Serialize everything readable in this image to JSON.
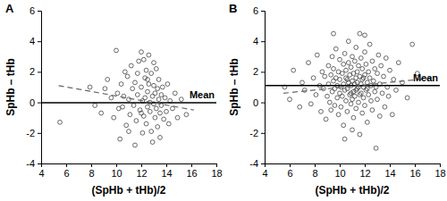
{
  "chart_data": [
    {
      "type": "scatter",
      "title": "A",
      "x_label": "(SpHb + tHb)/2",
      "y_label": "SpHb – tHb",
      "xlim": [
        4,
        18
      ],
      "xticks": [
        4,
        6,
        8,
        10,
        12,
        14,
        16,
        18
      ],
      "ylim": [
        -4,
        6
      ],
      "yticks": [
        -4,
        -2,
        0,
        2,
        4,
        6
      ],
      "annotations": [
        {
          "text": "Mean"
        }
      ],
      "series": [
        {
          "type": "scatter",
          "marker": "circle",
          "color": "#444444",
          "x": [
            5.5,
            7.9,
            8.3,
            8.8,
            9.1,
            9.3,
            9.6,
            9.8,
            10.0,
            10.1,
            10.2,
            10.4,
            10.5,
            10.6,
            10.8,
            10.9,
            11.0,
            11.1,
            11.2,
            11.3,
            11.4,
            11.5,
            11.6,
            11.7,
            11.8,
            11.9,
            12.0,
            12.0,
            12.1,
            12.1,
            12.2,
            12.2,
            12.3,
            12.3,
            12.4,
            12.4,
            12.5,
            12.5,
            12.6,
            12.6,
            12.7,
            12.7,
            12.8,
            12.8,
            12.9,
            12.9,
            13.0,
            13.0,
            13.1,
            13.1,
            13.2,
            13.2,
            13.3,
            13.3,
            13.4,
            13.4,
            13.5,
            13.5,
            13.6,
            13.6,
            13.7,
            13.8,
            13.9,
            14.0,
            14.1,
            14.2,
            14.3,
            14.5,
            14.7,
            14.9,
            15.2,
            15.6,
            11.5,
            11.0,
            10.3,
            12.0,
            12.5,
            13.0,
            11.7,
            10.7
          ],
          "values": [
            -1.3,
            1.0,
            -0.2,
            -0.7,
            0.9,
            1.5,
            0.3,
            -1.0,
            3.4,
            0.6,
            -0.4,
            1.2,
            -0.3,
            0.4,
            -1.5,
            1.7,
            0.2,
            -0.8,
            2.4,
            0.9,
            -0.2,
            1.3,
            -1.2,
            0.5,
            2.7,
            -0.5,
            3.3,
            1.0,
            -2.0,
            0.1,
            2.8,
            -0.9,
            1.6,
            0.3,
            -1.4,
            2.1,
            0.7,
            -0.3,
            3.1,
            1.2,
            -0.6,
            0.0,
            1.9,
            -1.9,
            0.4,
            -2.6,
            1.1,
            -0.1,
            -1.0,
            0.6,
            2.2,
            -0.4,
            0.9,
            -1.6,
            0.2,
            1.5,
            -0.7,
            -2.3,
            0.5,
            -0.2,
            1.0,
            -1.1,
            0.3,
            -0.6,
            1.2,
            -1.4,
            0.1,
            -0.4,
            0.6,
            -1.0,
            0.2,
            -0.8,
            -2.8,
            -1.9,
            -2.4,
            -0.7,
            1.5,
            2.6,
            1.9,
            2.0
          ]
        },
        {
          "type": "line",
          "line_style": "solid",
          "color": "#000000",
          "x": [
            4,
            18
          ],
          "values": [
            -0.03,
            -0.03
          ]
        },
        {
          "type": "line",
          "line_style": "dashed",
          "color": "#666666",
          "x": [
            5.4,
            16.2
          ],
          "values": [
            1.1,
            -0.5
          ]
        }
      ]
    },
    {
      "type": "scatter",
      "title": "B",
      "x_label": "(SpHb + tHb)/2",
      "y_label": "SpHb – tHb",
      "xlim": [
        4,
        18
      ],
      "xticks": [
        4,
        6,
        8,
        10,
        12,
        14,
        16,
        18
      ],
      "ylim": [
        -4,
        6
      ],
      "yticks": [
        -4,
        -2,
        0,
        2,
        4,
        6
      ],
      "annotations": [
        {
          "text": "Mean"
        }
      ],
      "series": [
        {
          "type": "scatter",
          "marker": "circle",
          "color": "#444444",
          "x": [
            5.6,
            6.0,
            6.3,
            6.8,
            7.0,
            7.2,
            7.5,
            7.7,
            7.9,
            8.1,
            8.2,
            8.4,
            8.5,
            8.6,
            8.7,
            8.8,
            8.9,
            9.0,
            9.1,
            9.1,
            9.2,
            9.3,
            9.3,
            9.4,
            9.4,
            9.5,
            9.5,
            9.6,
            9.6,
            9.7,
            9.7,
            9.8,
            9.8,
            9.9,
            9.9,
            10.0,
            10.0,
            10.0,
            10.1,
            10.1,
            10.2,
            10.2,
            10.3,
            10.3,
            10.3,
            10.4,
            10.4,
            10.5,
            10.5,
            10.5,
            10.6,
            10.6,
            10.7,
            10.7,
            10.7,
            10.8,
            10.8,
            10.9,
            10.9,
            10.9,
            11.0,
            11.0,
            11.0,
            11.1,
            11.1,
            11.1,
            11.2,
            11.2,
            11.2,
            11.3,
            11.3,
            11.3,
            11.4,
            11.4,
            11.4,
            11.5,
            11.5,
            11.5,
            11.6,
            11.6,
            11.6,
            11.7,
            11.7,
            11.7,
            11.8,
            11.8,
            11.8,
            11.9,
            11.9,
            12.0,
            12.0,
            12.0,
            12.1,
            12.1,
            12.2,
            12.2,
            12.3,
            12.3,
            12.4,
            12.4,
            12.5,
            12.5,
            12.6,
            12.6,
            12.7,
            12.8,
            12.8,
            12.9,
            12.9,
            13.0,
            13.0,
            13.1,
            13.2,
            13.2,
            13.3,
            13.4,
            13.5,
            13.6,
            13.7,
            13.8,
            13.9,
            14.0,
            14.2,
            14.3,
            14.5,
            14.7,
            15.0,
            15.4,
            15.8,
            16.2,
            10.4,
            11.0,
            9.5,
            12.0,
            11.3,
            10.6,
            11.9,
            12.2,
            10.9,
            11.6
          ],
          "values": [
            1.0,
            0.2,
            2.1,
            -0.3,
            1.3,
            0.8,
            2.6,
            -0.1,
            1.6,
            0.5,
            3.1,
            1.1,
            -0.6,
            2.0,
            0.9,
            1.7,
            -1.1,
            0.4,
            2.4,
            1.2,
            0.0,
            1.8,
            -0.5,
            3.0,
            0.7,
            1.4,
            2.2,
            -0.2,
            0.9,
            1.6,
            3.5,
            0.3,
            1.1,
            2.0,
            -0.8,
            0.6,
            1.5,
            2.8,
            -0.3,
            1.0,
            1.9,
            0.4,
            2.5,
            -1.5,
            1.2,
            0.8,
            3.2,
            0.1,
            1.6,
            2.1,
            -0.6,
            0.9,
            1.3,
            4.0,
            2.6,
            0.5,
            1.8,
            -0.1,
            1.1,
            2.3,
            0.2,
            1.4,
            3.0,
            0.7,
            1.9,
            -1.0,
            1.2,
            2.7,
            0.4,
            1.6,
            -0.4,
            3.6,
            0.9,
            2.0,
            1.3,
            0.0,
            2.4,
            1.0,
            -2.1,
            1.7,
            4.5,
            0.6,
            2.9,
            1.2,
            -0.7,
            1.5,
            2.2,
            0.3,
            1.0,
            3.3,
            1.8,
            -0.2,
            0.8,
            2.5,
            1.3,
            -1.3,
            0.5,
            2.0,
            1.6,
            3.8,
            0.1,
            1.1,
            2.7,
            -0.5,
            1.4,
            0.7,
            2.2,
            -3.0,
            1.0,
            1.9,
            0.2,
            3.1,
            1.2,
            -0.9,
            2.4,
            0.6,
            1.7,
            -0.3,
            2.9,
            1.0,
            0.4,
            2.1,
            -0.8,
            1.5,
            0.8,
            2.6,
            1.3,
            0.3,
            3.8,
            1.9,
            -2.4,
            -1.8,
            4.5,
            4.4,
            0.8,
            1.5,
            1.6,
            0.9,
            0.6,
            0.5
          ]
        },
        {
          "type": "line",
          "line_style": "solid",
          "color": "#000000",
          "x": [
            4,
            18
          ],
          "values": [
            1.1,
            1.1
          ]
        },
        {
          "type": "line",
          "line_style": "dashed",
          "color": "#666666",
          "x": [
            5.5,
            17.5
          ],
          "values": [
            0.6,
            1.6
          ]
        }
      ]
    }
  ]
}
